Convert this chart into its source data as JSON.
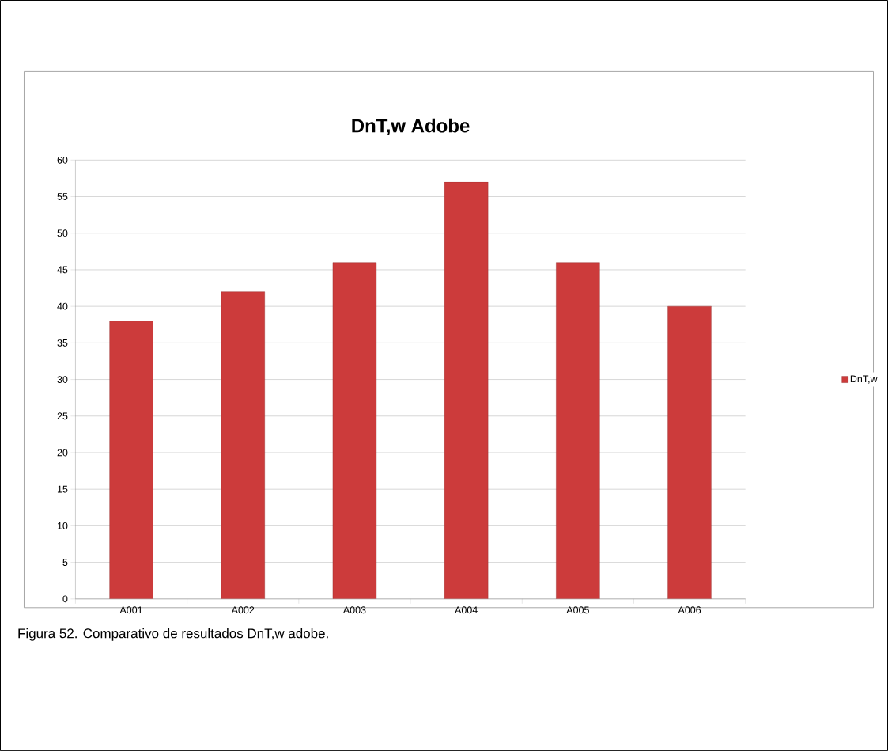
{
  "chart_data": {
    "type": "bar",
    "title": "DnT,w Adobe",
    "categories": [
      "A001",
      "A002",
      "A003",
      "A004",
      "A005",
      "A006"
    ],
    "series": [
      {
        "name": "DnT,w",
        "color": "#cc3b3b",
        "values": [
          38,
          42,
          46,
          57,
          46,
          40
        ]
      }
    ],
    "ylim": [
      0,
      60
    ],
    "yticks": [
      0,
      5,
      10,
      15,
      20,
      25,
      30,
      35,
      40,
      45,
      50,
      55,
      60
    ],
    "grid": "y",
    "legend": "right",
    "annotations": [
      "Figura 52. Comparativo de resultados DnT,w adobe."
    ]
  }
}
